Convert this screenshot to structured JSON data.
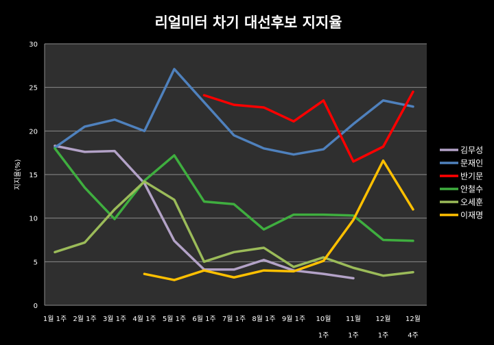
{
  "chart_data": {
    "type": "line",
    "title": "리얼미터 차기 대선후보 지지율",
    "ylabel": "지지율(%)",
    "xlabel": "",
    "ylim": [
      0,
      30
    ],
    "yticks": [
      0,
      5,
      10,
      15,
      20,
      25,
      30
    ],
    "grid": true,
    "legend_position": "right",
    "categories": [
      "1월 1주",
      "2월 1주",
      "3월 1주",
      "4월 1주",
      "5월 1주",
      "6월 1주",
      "7월 1주",
      "8월 1주",
      "9월 1주",
      "10월 1주",
      "11월 1주",
      "12월 1주",
      "12월 4주"
    ],
    "category_lines": [
      [
        "1월 1주"
      ],
      [
        "2월 1주"
      ],
      [
        "3월 1주"
      ],
      [
        "4월 1주"
      ],
      [
        "5월 1주"
      ],
      [
        "6월 1주"
      ],
      [
        "7월 1주"
      ],
      [
        "8월 1주"
      ],
      [
        "9월 1주"
      ],
      [
        "10월",
        "1주"
      ],
      [
        "11월",
        "1주"
      ],
      [
        "12월",
        "1주"
      ],
      [
        "12월",
        "4주"
      ]
    ],
    "series": [
      {
        "name": "김무성",
        "color": "#b3a2c7",
        "values": [
          18.3,
          17.6,
          17.7,
          14.0,
          7.4,
          4.1,
          4.1,
          5.2,
          4.0,
          3.6,
          3.1,
          null,
          null
        ]
      },
      {
        "name": "문재인",
        "color": "#4f81bd",
        "values": [
          18.1,
          20.5,
          21.3,
          20.0,
          27.1,
          23.3,
          19.5,
          18.0,
          17.3,
          17.9,
          20.8,
          23.5,
          22.8
        ]
      },
      {
        "name": "반기문",
        "color": "#ff0000",
        "values": [
          null,
          null,
          null,
          null,
          null,
          24.1,
          23.0,
          22.7,
          21.1,
          23.5,
          16.5,
          18.2,
          24.5
        ]
      },
      {
        "name": "안철수",
        "color": "#3fae3f",
        "values": [
          18.0,
          13.5,
          9.9,
          14.3,
          17.2,
          11.9,
          11.6,
          8.7,
          10.4,
          10.4,
          10.3,
          7.5,
          7.4
        ]
      },
      {
        "name": "오세훈",
        "color": "#9bbb59",
        "values": [
          6.1,
          7.2,
          11.0,
          14.2,
          12.1,
          5.0,
          6.1,
          6.6,
          4.4,
          5.5,
          4.3,
          3.4,
          3.8
        ]
      },
      {
        "name": "이재명",
        "color": "#ffc000",
        "values": [
          null,
          null,
          null,
          3.6,
          2.9,
          4.0,
          3.2,
          4.0,
          3.9,
          5.1,
          9.8,
          16.6,
          11.0
        ]
      }
    ]
  }
}
